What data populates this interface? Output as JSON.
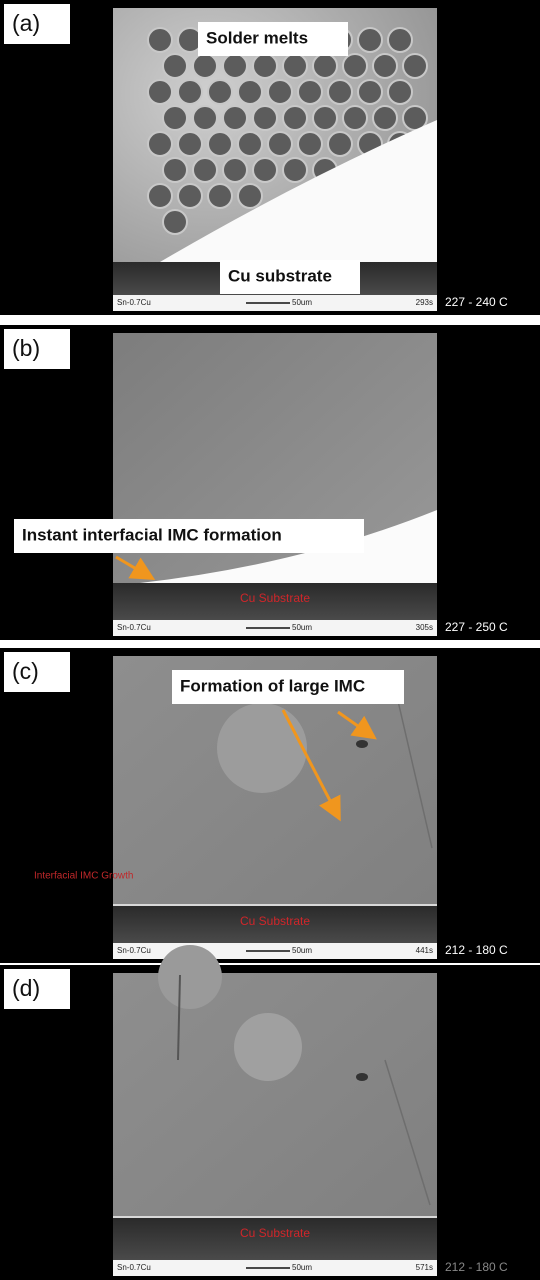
{
  "panels": [
    {
      "label": "(a)",
      "annotation": "Solder melts",
      "annotation_2": "Cu substrate",
      "info": {
        "alloy": "Sn-0.7Cu",
        "scale": "50um",
        "time": "293s",
        "temperature": "227 - 240 C"
      }
    },
    {
      "label": "(b)",
      "annotation": "Instant interfacial IMC formation",
      "substrate_label": "Cu Substrate",
      "info": {
        "alloy": "Sn-0.7Cu",
        "scale": "50um",
        "time": "305s",
        "temperature": "227 - 250 C"
      }
    },
    {
      "label": "(c)",
      "annotation": "Formation of large IMC",
      "side_label": "Interfacial IMC Growth",
      "substrate_label": "Cu Substrate",
      "info": {
        "alloy": "Sn-0.7Cu",
        "scale": "50um",
        "time": "441s",
        "temperature": "212 - 180 C"
      }
    },
    {
      "label": "(d)",
      "substrate_label": "Cu Substrate",
      "info": {
        "alloy": "Sn-0.7Cu",
        "scale": "50um",
        "time": "571s",
        "temperature": "212 - 180 C"
      }
    }
  ]
}
